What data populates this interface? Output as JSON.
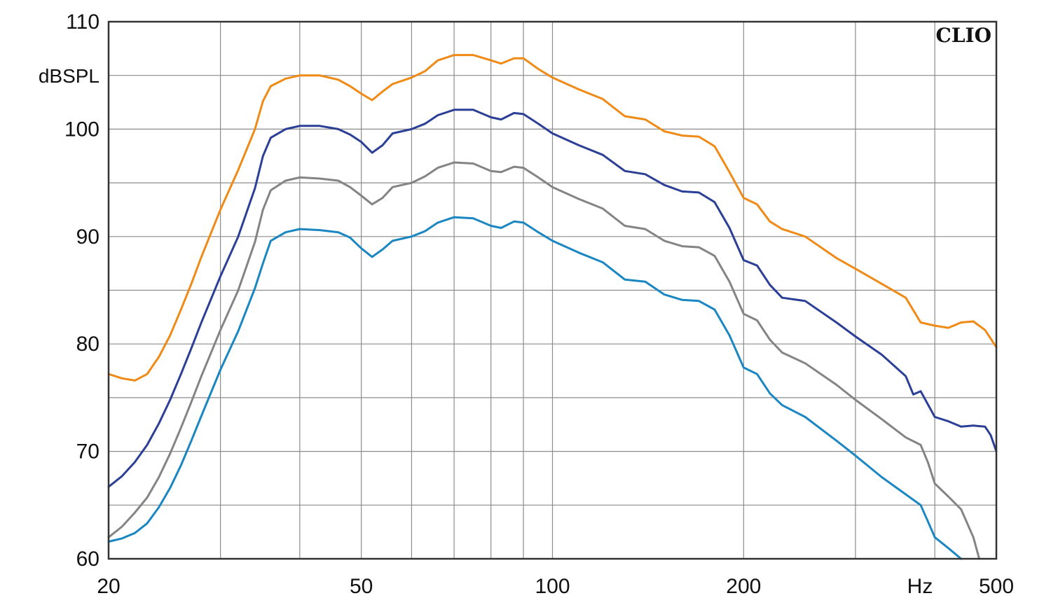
{
  "chart_data": {
    "type": "line",
    "title": "",
    "xlabel": "Hz",
    "ylabel": "dBSPL",
    "brand": "CLIO",
    "xscale": "log",
    "xlim": [
      20,
      500
    ],
    "ylim": [
      60,
      110
    ],
    "grid": true,
    "x_ticks": [
      20,
      30,
      40,
      50,
      60,
      70,
      80,
      90,
      100,
      200,
      300,
      400,
      500
    ],
    "x_tick_labels": [
      {
        "value": 20,
        "label": "20"
      },
      {
        "value": 50,
        "label": "50"
      },
      {
        "value": 100,
        "label": "100"
      },
      {
        "value": 200,
        "label": "200"
      },
      {
        "value": 500,
        "label": "500"
      }
    ],
    "y_ticks": [
      60,
      65,
      70,
      75,
      80,
      85,
      90,
      95,
      100,
      105,
      110
    ],
    "y_tick_labels": [
      "60",
      "70",
      "80",
      "90",
      "100",
      "110"
    ],
    "series": [
      {
        "color": "#ef8a17",
        "points": [
          [
            20,
            77.2
          ],
          [
            21,
            76.8
          ],
          [
            22,
            76.6
          ],
          [
            23,
            77.2
          ],
          [
            24,
            78.8
          ],
          [
            25,
            80.8
          ],
          [
            26,
            83.2
          ],
          [
            27,
            85.6
          ],
          [
            28,
            88.1
          ],
          [
            30,
            92.5
          ],
          [
            32,
            96.2
          ],
          [
            34,
            100.0
          ],
          [
            35,
            102.6
          ],
          [
            36,
            104.0
          ],
          [
            38,
            104.7
          ],
          [
            40,
            105.0
          ],
          [
            43,
            105.0
          ],
          [
            46,
            104.6
          ],
          [
            48,
            104.0
          ],
          [
            50,
            103.3
          ],
          [
            52,
            102.7
          ],
          [
            54,
            103.5
          ],
          [
            56,
            104.2
          ],
          [
            60,
            104.8
          ],
          [
            63,
            105.4
          ],
          [
            66,
            106.4
          ],
          [
            70,
            106.9
          ],
          [
            75,
            106.9
          ],
          [
            80,
            106.4
          ],
          [
            83,
            106.1
          ],
          [
            87,
            106.6
          ],
          [
            90,
            106.6
          ],
          [
            95,
            105.6
          ],
          [
            100,
            104.8
          ],
          [
            110,
            103.7
          ],
          [
            120,
            102.8
          ],
          [
            130,
            101.2
          ],
          [
            140,
            100.9
          ],
          [
            150,
            99.8
          ],
          [
            160,
            99.4
          ],
          [
            170,
            99.3
          ],
          [
            180,
            98.4
          ],
          [
            190,
            96.0
          ],
          [
            200,
            93.6
          ],
          [
            210,
            93.0
          ],
          [
            220,
            91.4
          ],
          [
            230,
            90.7
          ],
          [
            250,
            90.0
          ],
          [
            280,
            88.0
          ],
          [
            300,
            87.0
          ],
          [
            330,
            85.6
          ],
          [
            360,
            84.3
          ],
          [
            380,
            82.0
          ],
          [
            400,
            81.7
          ],
          [
            420,
            81.5
          ],
          [
            440,
            82.0
          ],
          [
            460,
            82.1
          ],
          [
            480,
            81.3
          ],
          [
            500,
            79.7
          ]
        ]
      },
      {
        "color": "#2b3f96",
        "points": [
          [
            20,
            66.7
          ],
          [
            21,
            67.7
          ],
          [
            22,
            69.0
          ],
          [
            23,
            70.6
          ],
          [
            24,
            72.6
          ],
          [
            25,
            74.8
          ],
          [
            26,
            77.2
          ],
          [
            27,
            79.6
          ],
          [
            28,
            82.0
          ],
          [
            30,
            86.3
          ],
          [
            32,
            90.0
          ],
          [
            34,
            94.5
          ],
          [
            35,
            97.5
          ],
          [
            36,
            99.2
          ],
          [
            38,
            100.0
          ],
          [
            40,
            100.3
          ],
          [
            43,
            100.3
          ],
          [
            46,
            100.0
          ],
          [
            48,
            99.5
          ],
          [
            50,
            98.8
          ],
          [
            52,
            97.8
          ],
          [
            54,
            98.5
          ],
          [
            56,
            99.6
          ],
          [
            60,
            100.0
          ],
          [
            63,
            100.5
          ],
          [
            66,
            101.3
          ],
          [
            70,
            101.8
          ],
          [
            75,
            101.8
          ],
          [
            80,
            101.1
          ],
          [
            83,
            100.9
          ],
          [
            87,
            101.5
          ],
          [
            90,
            101.4
          ],
          [
            95,
            100.5
          ],
          [
            100,
            99.6
          ],
          [
            110,
            98.5
          ],
          [
            120,
            97.6
          ],
          [
            130,
            96.1
          ],
          [
            140,
            95.8
          ],
          [
            150,
            94.8
          ],
          [
            160,
            94.2
          ],
          [
            170,
            94.1
          ],
          [
            180,
            93.2
          ],
          [
            190,
            90.8
          ],
          [
            200,
            87.8
          ],
          [
            210,
            87.3
          ],
          [
            220,
            85.5
          ],
          [
            230,
            84.3
          ],
          [
            250,
            84.0
          ],
          [
            280,
            82.0
          ],
          [
            300,
            80.7
          ],
          [
            330,
            79.0
          ],
          [
            360,
            77.0
          ],
          [
            370,
            75.3
          ],
          [
            380,
            75.6
          ],
          [
            400,
            73.2
          ],
          [
            420,
            72.8
          ],
          [
            440,
            72.3
          ],
          [
            460,
            72.4
          ],
          [
            480,
            72.3
          ],
          [
            490,
            71.5
          ],
          [
            500,
            70.0
          ]
        ]
      },
      {
        "color": "#848484",
        "points": [
          [
            20,
            62.0
          ],
          [
            21,
            63.0
          ],
          [
            22,
            64.3
          ],
          [
            23,
            65.7
          ],
          [
            24,
            67.6
          ],
          [
            25,
            69.8
          ],
          [
            26,
            72.2
          ],
          [
            27,
            74.6
          ],
          [
            28,
            77.0
          ],
          [
            30,
            81.3
          ],
          [
            32,
            85.0
          ],
          [
            34,
            89.5
          ],
          [
            35,
            92.5
          ],
          [
            36,
            94.3
          ],
          [
            38,
            95.2
          ],
          [
            40,
            95.5
          ],
          [
            43,
            95.4
          ],
          [
            46,
            95.2
          ],
          [
            48,
            94.6
          ],
          [
            50,
            93.8
          ],
          [
            52,
            93.0
          ],
          [
            54,
            93.6
          ],
          [
            56,
            94.6
          ],
          [
            60,
            95.0
          ],
          [
            63,
            95.6
          ],
          [
            66,
            96.4
          ],
          [
            70,
            96.9
          ],
          [
            75,
            96.8
          ],
          [
            80,
            96.1
          ],
          [
            83,
            96.0
          ],
          [
            87,
            96.5
          ],
          [
            90,
            96.4
          ],
          [
            95,
            95.5
          ],
          [
            100,
            94.6
          ],
          [
            110,
            93.5
          ],
          [
            120,
            92.6
          ],
          [
            130,
            91.0
          ],
          [
            140,
            90.7
          ],
          [
            150,
            89.6
          ],
          [
            160,
            89.1
          ],
          [
            170,
            89.0
          ],
          [
            180,
            88.2
          ],
          [
            190,
            85.8
          ],
          [
            200,
            82.8
          ],
          [
            210,
            82.2
          ],
          [
            220,
            80.4
          ],
          [
            230,
            79.2
          ],
          [
            250,
            78.2
          ],
          [
            280,
            76.2
          ],
          [
            300,
            74.8
          ],
          [
            330,
            73.0
          ],
          [
            360,
            71.3
          ],
          [
            380,
            70.6
          ],
          [
            390,
            69.0
          ],
          [
            400,
            67.0
          ],
          [
            420,
            65.8
          ],
          [
            440,
            64.6
          ],
          [
            460,
            62.0
          ],
          [
            470,
            60.0
          ]
        ]
      },
      {
        "color": "#1a86c2",
        "points": [
          [
            20,
            61.6
          ],
          [
            21,
            61.9
          ],
          [
            22,
            62.4
          ],
          [
            23,
            63.3
          ],
          [
            24,
            64.8
          ],
          [
            25,
            66.6
          ],
          [
            26,
            68.7
          ],
          [
            27,
            71.0
          ],
          [
            28,
            73.3
          ],
          [
            30,
            77.6
          ],
          [
            32,
            81.2
          ],
          [
            34,
            85.2
          ],
          [
            35,
            87.5
          ],
          [
            36,
            89.6
          ],
          [
            38,
            90.4
          ],
          [
            40,
            90.7
          ],
          [
            43,
            90.6
          ],
          [
            46,
            90.4
          ],
          [
            48,
            89.9
          ],
          [
            50,
            88.9
          ],
          [
            52,
            88.1
          ],
          [
            54,
            88.8
          ],
          [
            56,
            89.6
          ],
          [
            60,
            90.0
          ],
          [
            63,
            90.5
          ],
          [
            66,
            91.3
          ],
          [
            70,
            91.8
          ],
          [
            75,
            91.7
          ],
          [
            80,
            91.0
          ],
          [
            83,
            90.8
          ],
          [
            87,
            91.4
          ],
          [
            90,
            91.3
          ],
          [
            95,
            90.4
          ],
          [
            100,
            89.6
          ],
          [
            110,
            88.5
          ],
          [
            120,
            87.6
          ],
          [
            130,
            86.0
          ],
          [
            140,
            85.8
          ],
          [
            150,
            84.6
          ],
          [
            160,
            84.1
          ],
          [
            170,
            84.0
          ],
          [
            180,
            83.2
          ],
          [
            190,
            80.8
          ],
          [
            200,
            77.8
          ],
          [
            210,
            77.2
          ],
          [
            220,
            75.4
          ],
          [
            230,
            74.3
          ],
          [
            250,
            73.2
          ],
          [
            280,
            71.0
          ],
          [
            300,
            69.6
          ],
          [
            330,
            67.6
          ],
          [
            360,
            66.0
          ],
          [
            380,
            65.0
          ],
          [
            390,
            63.5
          ],
          [
            400,
            62.0
          ],
          [
            420,
            61.0
          ],
          [
            440,
            60.0
          ]
        ]
      }
    ]
  }
}
